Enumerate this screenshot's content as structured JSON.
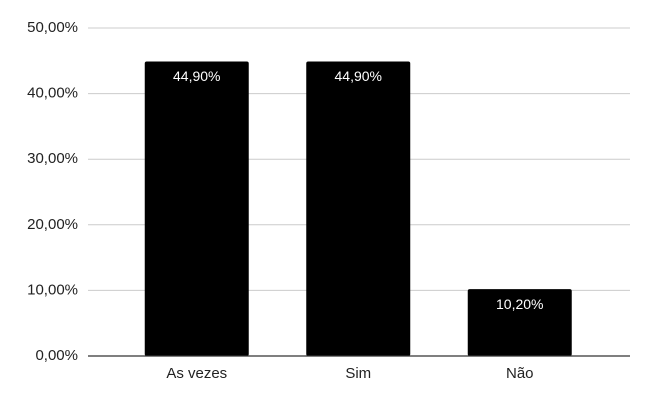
{
  "chart_data": {
    "type": "bar",
    "categories": [
      "As vezes",
      "Sim",
      "Não"
    ],
    "values": [
      44.9,
      44.9,
      10.2
    ],
    "value_labels": [
      "44,90%",
      "44,90%",
      "10,20%"
    ],
    "color": "#000000",
    "ylim": [
      0,
      50
    ],
    "yticks": [
      {
        "value": 0,
        "label": "0,00%"
      },
      {
        "value": 10,
        "label": "10,00%"
      },
      {
        "value": 20,
        "label": "20,00%"
      },
      {
        "value": 30,
        "label": "30,00%"
      },
      {
        "value": 40,
        "label": "40,00%"
      },
      {
        "value": 50,
        "label": "50,00%"
      }
    ],
    "grid": true
  }
}
